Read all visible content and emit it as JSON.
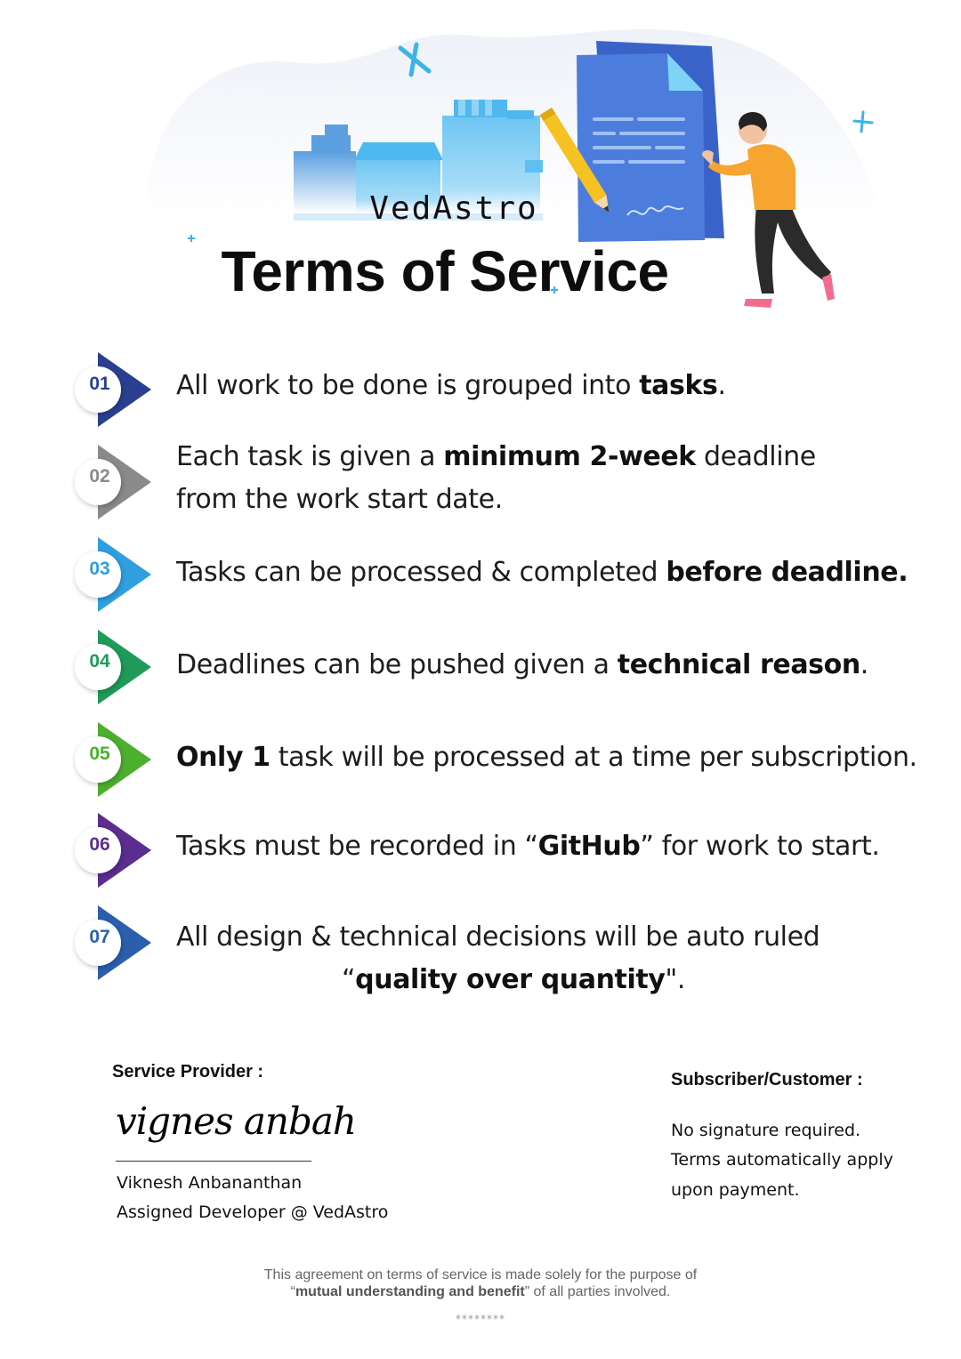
{
  "header": {
    "brand": "VedAstro",
    "title": "Terms of Service"
  },
  "terms": [
    {
      "number": "01",
      "color": "#2a3f8f",
      "parts": [
        "All work to be done is grouped into ",
        "tasks",
        "."
      ]
    },
    {
      "number": "02",
      "color": "#8a8a8a",
      "parts": [
        "Each task is given a ",
        "minimum 2-week",
        " deadline"
      ],
      "line2": "from the work start date."
    },
    {
      "number": "03",
      "color": "#2f9fe0",
      "parts": [
        "Tasks can be processed & completed ",
        "before deadline.",
        ""
      ]
    },
    {
      "number": "04",
      "color": "#1f9a5a",
      "parts": [
        "Deadlines can be pushed given a ",
        "technical reason",
        "."
      ]
    },
    {
      "number": "05",
      "color": "#4caf2e",
      "parts": [
        "",
        "Only 1",
        " task will be processed at a time per subscription."
      ]
    },
    {
      "number": "06",
      "color": "#5a2d8f",
      "parts": [
        "Tasks must be recorded in “",
        "GitHub",
        "” for work to start."
      ]
    },
    {
      "number": "07",
      "color": "#2b5fae",
      "parts": [
        "All design & technical decisions will be auto ruled"
      ],
      "line2_parts": [
        "“",
        "quality over quantity",
        "\"."
      ]
    }
  ],
  "provider": {
    "heading": "Service Provider :",
    "signature": "vignes anbah",
    "name": "Viknesh Anbananthan",
    "role": "Assigned Developer @ VedAstro"
  },
  "subscriber": {
    "heading": "Subscriber/Customer :",
    "line1": "No signature required.",
    "line2": "Terms automatically apply",
    "line3": "upon payment."
  },
  "footer": {
    "line1": "This agreement on terms of service is made solely for the purpose of",
    "line2_pre": "“",
    "line2_bold": "mutual understanding and benefit",
    "line2_post": "” of all parties involved.",
    "stars": "********"
  }
}
